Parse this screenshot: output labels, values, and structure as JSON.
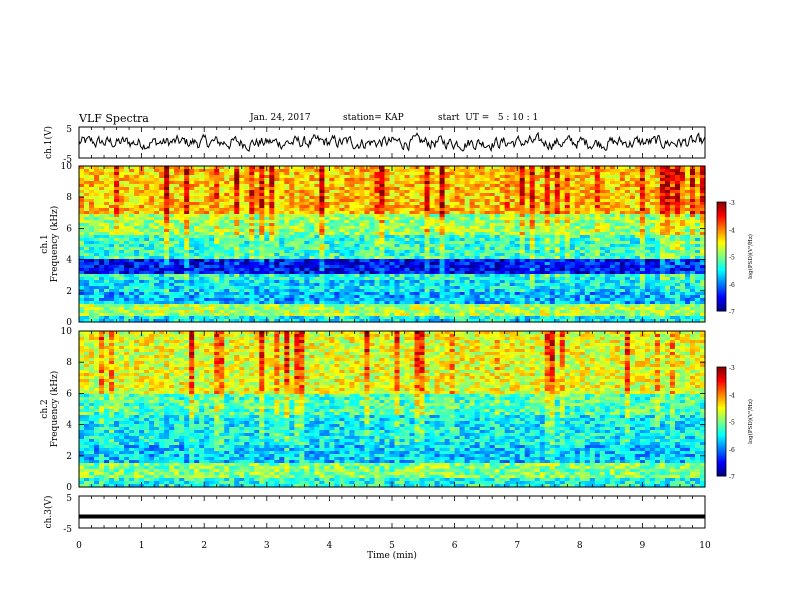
{
  "header": {
    "title": "VLF Spectra",
    "date": "Jan. 24, 2017",
    "station": "station= KAP",
    "start": "start  UT =   5 : 10 : 1"
  },
  "chart_data": [
    {
      "type": "line",
      "panel": "ch1-waveform",
      "ylabel": "ch.1(V)",
      "y_ticks": [
        "5",
        "-5"
      ],
      "ylim": [
        -5,
        5
      ],
      "xlim": [
        0,
        10
      ],
      "series": [
        {
          "style": "noisy-trace",
          "mean": 0,
          "amplitude": 2.5,
          "color": "#000000"
        }
      ]
    },
    {
      "type": "heatmap",
      "panel": "ch1-spectrogram",
      "ylabel": "Frequency (kHz)",
      "channel_label": "ch.1",
      "y_ticks": [
        "0",
        "2",
        "4",
        "6",
        "8",
        "10"
      ],
      "ylim": [
        0,
        10
      ],
      "xlim": [
        0,
        10
      ],
      "colorbar": {
        "label": "log(PSD)(V²/Hz)",
        "ticks": [
          "-3",
          "-4",
          "-5",
          "-6",
          "-7"
        ],
        "range": [
          -7,
          -3
        ]
      },
      "bands": [
        {
          "f_low": 0,
          "f_high": 0.4,
          "level": -5.5
        },
        {
          "f_low": 0.4,
          "f_high": 1.2,
          "level": -4.8
        },
        {
          "f_low": 1.2,
          "f_high": 2.0,
          "level": -5.8
        },
        {
          "f_low": 2.0,
          "f_high": 2.6,
          "level": -5.6
        },
        {
          "f_low": 2.6,
          "f_high": 3.0,
          "level": -5.4
        },
        {
          "f_low": 3.0,
          "f_high": 4.1,
          "level": -6.5
        },
        {
          "f_low": 4.1,
          "f_high": 5.5,
          "level": -5.3
        },
        {
          "f_low": 5.5,
          "f_high": 7.0,
          "level": -4.9
        },
        {
          "f_low": 7.0,
          "f_high": 10.0,
          "level": -4.3
        }
      ]
    },
    {
      "type": "heatmap",
      "panel": "ch2-spectrogram",
      "ylabel": "Frequency (kHz)",
      "channel_label": "ch.2",
      "y_ticks": [
        "0",
        "2",
        "4",
        "6",
        "8",
        "10"
      ],
      "ylim": [
        0,
        10
      ],
      "xlim": [
        0,
        10
      ],
      "colorbar": {
        "label": "log(PSD)(V²/Hz)",
        "ticks": [
          "-3",
          "-4",
          "-5",
          "-6",
          "-7"
        ],
        "range": [
          -7,
          -3
        ]
      },
      "bands": [
        {
          "f_low": 0,
          "f_high": 0.6,
          "level": -5.4
        },
        {
          "f_low": 0.6,
          "f_high": 1.5,
          "level": -5.0
        },
        {
          "f_low": 1.5,
          "f_high": 2.6,
          "level": -5.7
        },
        {
          "f_low": 2.6,
          "f_high": 4.6,
          "level": -5.5
        },
        {
          "f_low": 4.6,
          "f_high": 6.0,
          "level": -5.2
        },
        {
          "f_low": 6.0,
          "f_high": 10.0,
          "level": -4.6
        }
      ]
    },
    {
      "type": "line",
      "panel": "ch3-waveform",
      "ylabel": "ch.3(V)",
      "y_ticks": [
        "5",
        "-5"
      ],
      "ylim": [
        -5,
        5
      ],
      "xlim": [
        0,
        10
      ],
      "series": [
        {
          "style": "flat",
          "value": -1.4,
          "color": "#000000"
        }
      ]
    }
  ],
  "xaxis": {
    "label": "Time (min)",
    "ticks": [
      "0",
      "1",
      "2",
      "3",
      "4",
      "5",
      "6",
      "7",
      "8",
      "9",
      "10"
    ],
    "range": [
      0,
      10
    ]
  }
}
